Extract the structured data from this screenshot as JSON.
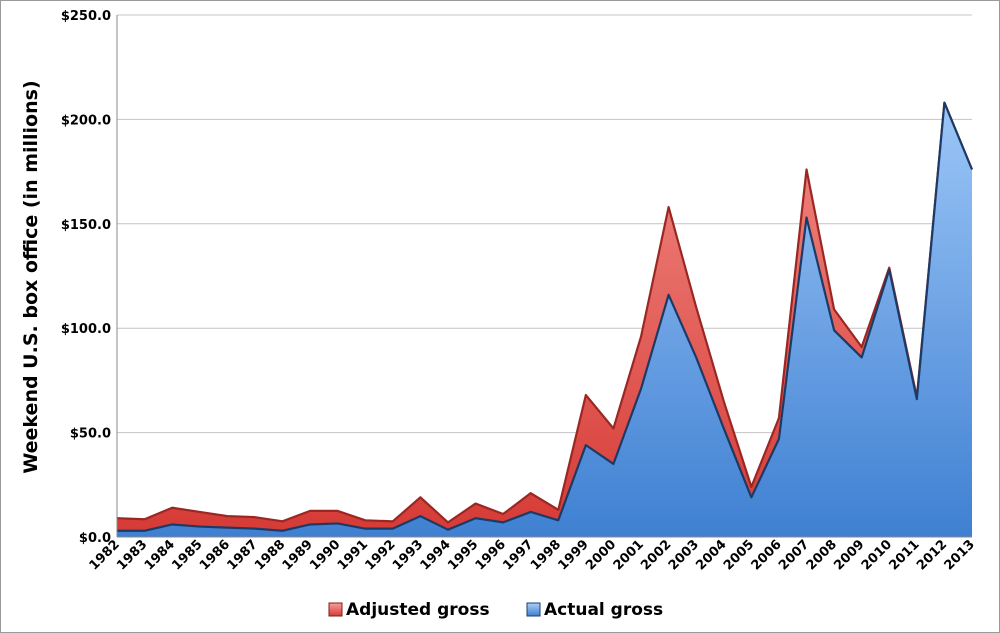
{
  "chart_data": {
    "type": "area",
    "ylabel": "Weekend U.S. box office (in millions)",
    "xlabel": "",
    "ylim": [
      0,
      250
    ],
    "yticks": [
      0,
      50,
      100,
      150,
      200,
      250
    ],
    "ytick_labels": [
      "$0.0",
      "$50.0",
      "$100.0",
      "$150.0",
      "$200.0",
      "$250.0"
    ],
    "grid": true,
    "legend_position": "bottom",
    "x": [
      "1982",
      "1983",
      "1984",
      "1985",
      "1986",
      "1987",
      "1988",
      "1989",
      "1990",
      "1991",
      "1992",
      "1993",
      "1994",
      "1995",
      "1996",
      "1997",
      "1998",
      "1999",
      "2000",
      "2001",
      "2002",
      "2003",
      "2004",
      "2005",
      "2006",
      "2007",
      "2008",
      "2009",
      "2010",
      "2011",
      "2012",
      "2013"
    ],
    "series": [
      {
        "name": "Adjusted gross",
        "color": "#d9433f",
        "values": [
          9.0,
          8.5,
          14.0,
          12.0,
          10.0,
          9.5,
          7.5,
          12.5,
          12.5,
          8.0,
          7.5,
          19.0,
          7.0,
          16.0,
          11.0,
          21.0,
          13.0,
          68.0,
          52.0,
          96.0,
          158.0,
          110.0,
          65.0,
          24.0,
          57.0,
          176.0,
          109.0,
          91.0,
          129.0,
          67.0,
          208.0,
          176.0
        ]
      },
      {
        "name": "Actual gross",
        "color": "#4a8fd8",
        "values": [
          3.0,
          3.0,
          6.0,
          5.0,
          4.5,
          4.0,
          3.0,
          6.0,
          6.5,
          4.0,
          4.0,
          10.0,
          3.5,
          9.0,
          7.0,
          12.0,
          8.0,
          44.0,
          35.0,
          71.0,
          116.0,
          86.0,
          52.0,
          19.0,
          47.0,
          153.0,
          99.0,
          86.0,
          128.0,
          66.0,
          208.0,
          176.0
        ]
      }
    ]
  }
}
